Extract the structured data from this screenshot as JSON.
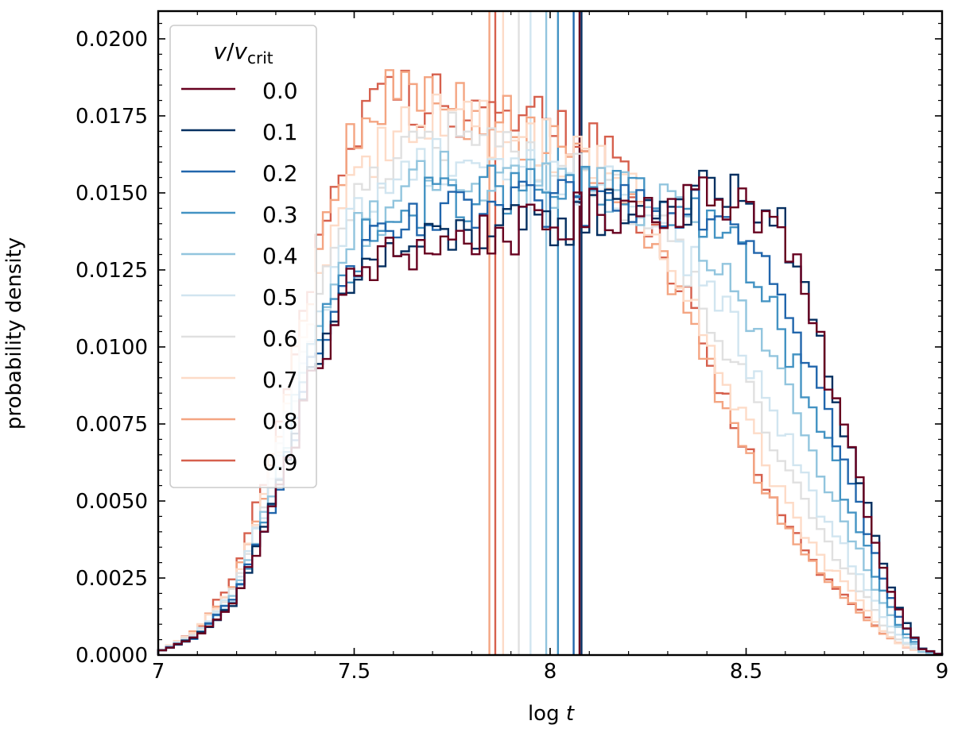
{
  "chart_data": {
    "type": "histogram",
    "xlabel_main": "log",
    "xlabel_var": "t",
    "ylabel": "probability density",
    "xlim": [
      7,
      9
    ],
    "ylim": [
      0,
      0.0209
    ],
    "xticks": [
      {
        "value": 7,
        "label": "7"
      },
      {
        "value": 7.5,
        "label": "7.5"
      },
      {
        "value": 8,
        "label": "8"
      },
      {
        "value": 8.5,
        "label": "8.5"
      },
      {
        "value": 9,
        "label": "9"
      }
    ],
    "yticks": [
      {
        "value": 0.0,
        "label": "0.0000"
      },
      {
        "value": 0.0025,
        "label": "0.0025"
      },
      {
        "value": 0.005,
        "label": "0.0050"
      },
      {
        "value": 0.0075,
        "label": "0.0075"
      },
      {
        "value": 0.01,
        "label": "0.0100"
      },
      {
        "value": 0.0125,
        "label": "0.0125"
      },
      {
        "value": 0.015,
        "label": "0.0150"
      },
      {
        "value": 0.0175,
        "label": "0.0175"
      },
      {
        "value": 0.02,
        "label": "0.0200"
      }
    ],
    "legend": {
      "position": "upper-left",
      "title_var": "v",
      "title_sub_var": "v",
      "title_sub": "crit"
    },
    "series": [
      {
        "name": "0.0",
        "color": "#67001f",
        "median": 8.075,
        "profile": [
          [
            7.0,
            0.0001
          ],
          [
            7.1,
            0.0006
          ],
          [
            7.2,
            0.0018
          ],
          [
            7.3,
            0.005
          ],
          [
            7.4,
            0.0092
          ],
          [
            7.5,
            0.0123
          ],
          [
            7.6,
            0.013
          ],
          [
            7.7,
            0.0133
          ],
          [
            7.8,
            0.0136
          ],
          [
            7.9,
            0.0137
          ],
          [
            8.0,
            0.0139
          ],
          [
            8.1,
            0.0143
          ],
          [
            8.2,
            0.0146
          ],
          [
            8.3,
            0.0147
          ],
          [
            8.4,
            0.0148
          ],
          [
            8.5,
            0.0149
          ],
          [
            8.6,
            0.0135
          ],
          [
            8.7,
            0.0095
          ],
          [
            8.8,
            0.0052
          ],
          [
            8.85,
            0.0028
          ],
          [
            8.9,
            0.0011
          ],
          [
            8.95,
            0.0002
          ],
          [
            9.0,
            0.0
          ]
        ]
      },
      {
        "name": "0.1",
        "color": "#053061",
        "median": 8.08,
        "profile": [
          [
            7.0,
            0.0001
          ],
          [
            7.1,
            0.0006
          ],
          [
            7.2,
            0.0018
          ],
          [
            7.3,
            0.005
          ],
          [
            7.4,
            0.0093
          ],
          [
            7.5,
            0.0124
          ],
          [
            7.6,
            0.013
          ],
          [
            7.7,
            0.0134
          ],
          [
            7.8,
            0.0137
          ],
          [
            7.9,
            0.0138
          ],
          [
            8.0,
            0.0139
          ],
          [
            8.1,
            0.0143
          ],
          [
            8.2,
            0.0146
          ],
          [
            8.3,
            0.0147
          ],
          [
            8.4,
            0.0149
          ],
          [
            8.5,
            0.015
          ],
          [
            8.6,
            0.0136
          ],
          [
            8.7,
            0.0096
          ],
          [
            8.8,
            0.0053
          ],
          [
            8.85,
            0.0029
          ],
          [
            8.9,
            0.0012
          ],
          [
            8.95,
            0.0002
          ],
          [
            9.0,
            0.0
          ]
        ]
      },
      {
        "name": "0.2",
        "color": "#2166ac",
        "median": 8.06,
        "profile": [
          [
            7.0,
            0.0001
          ],
          [
            7.1,
            0.0006
          ],
          [
            7.2,
            0.0019
          ],
          [
            7.3,
            0.0052
          ],
          [
            7.4,
            0.0096
          ],
          [
            7.5,
            0.0127
          ],
          [
            7.6,
            0.0136
          ],
          [
            7.7,
            0.0141
          ],
          [
            7.8,
            0.0143
          ],
          [
            7.9,
            0.0145
          ],
          [
            8.0,
            0.0145
          ],
          [
            8.1,
            0.0147
          ],
          [
            8.2,
            0.0148
          ],
          [
            8.3,
            0.0148
          ],
          [
            8.4,
            0.0146
          ],
          [
            8.5,
            0.014
          ],
          [
            8.6,
            0.0118
          ],
          [
            8.7,
            0.0082
          ],
          [
            8.8,
            0.0044
          ],
          [
            8.85,
            0.0024
          ],
          [
            8.9,
            0.001
          ],
          [
            8.95,
            0.0002
          ],
          [
            9.0,
            0.0
          ]
        ]
      },
      {
        "name": "0.3",
        "color": "#4393c3",
        "median": 8.02,
        "profile": [
          [
            7.0,
            0.0001
          ],
          [
            7.1,
            0.0006
          ],
          [
            7.2,
            0.0019
          ],
          [
            7.3,
            0.0054
          ],
          [
            7.4,
            0.01
          ],
          [
            7.5,
            0.0131
          ],
          [
            7.6,
            0.0141
          ],
          [
            7.7,
            0.0147
          ],
          [
            7.8,
            0.015
          ],
          [
            7.9,
            0.0151
          ],
          [
            8.0,
            0.015
          ],
          [
            8.1,
            0.015
          ],
          [
            8.2,
            0.0149
          ],
          [
            8.3,
            0.0147
          ],
          [
            8.4,
            0.0142
          ],
          [
            8.5,
            0.0128
          ],
          [
            8.6,
            0.0102
          ],
          [
            8.7,
            0.007
          ],
          [
            8.8,
            0.0037
          ],
          [
            8.85,
            0.002
          ],
          [
            8.9,
            0.0008
          ],
          [
            8.95,
            0.0002
          ],
          [
            9.0,
            0.0
          ]
        ]
      },
      {
        "name": "0.4",
        "color": "#92c5de",
        "median": 7.99,
        "profile": [
          [
            7.0,
            0.0001
          ],
          [
            7.1,
            0.0006
          ],
          [
            7.2,
            0.002
          ],
          [
            7.3,
            0.0056
          ],
          [
            7.4,
            0.0104
          ],
          [
            7.5,
            0.0136
          ],
          [
            7.6,
            0.0148
          ],
          [
            7.7,
            0.0154
          ],
          [
            7.8,
            0.0156
          ],
          [
            7.9,
            0.0155
          ],
          [
            8.0,
            0.0153
          ],
          [
            8.1,
            0.0151
          ],
          [
            8.2,
            0.0149
          ],
          [
            8.3,
            0.0144
          ],
          [
            8.4,
            0.0132
          ],
          [
            8.5,
            0.0113
          ],
          [
            8.6,
            0.0086
          ],
          [
            8.7,
            0.0057
          ],
          [
            8.8,
            0.003
          ],
          [
            8.85,
            0.0016
          ],
          [
            8.9,
            0.0007
          ],
          [
            8.95,
            0.0001
          ],
          [
            9.0,
            0.0
          ]
        ]
      },
      {
        "name": "0.5",
        "color": "#d1e5f0",
        "median": 7.95,
        "profile": [
          [
            7.0,
            0.0001
          ],
          [
            7.1,
            0.0007
          ],
          [
            7.2,
            0.0021
          ],
          [
            7.3,
            0.0058
          ],
          [
            7.4,
            0.0108
          ],
          [
            7.5,
            0.0143
          ],
          [
            7.6,
            0.0155
          ],
          [
            7.7,
            0.0161
          ],
          [
            7.8,
            0.0162
          ],
          [
            7.9,
            0.0159
          ],
          [
            8.0,
            0.0156
          ],
          [
            8.1,
            0.0153
          ],
          [
            8.2,
            0.0149
          ],
          [
            8.3,
            0.014
          ],
          [
            8.4,
            0.0122
          ],
          [
            8.5,
            0.0098
          ],
          [
            8.6,
            0.0071
          ],
          [
            8.7,
            0.0045
          ],
          [
            8.8,
            0.0024
          ],
          [
            8.85,
            0.0013
          ],
          [
            8.9,
            0.0005
          ],
          [
            8.95,
            0.0001
          ],
          [
            9.0,
            0.0
          ]
        ]
      },
      {
        "name": "0.6",
        "color": "#e0e0e0",
        "median": 7.92,
        "profile": [
          [
            7.0,
            0.0001
          ],
          [
            7.1,
            0.0007
          ],
          [
            7.2,
            0.0022
          ],
          [
            7.3,
            0.006
          ],
          [
            7.4,
            0.0113
          ],
          [
            7.5,
            0.015
          ],
          [
            7.6,
            0.0162
          ],
          [
            7.7,
            0.0168
          ],
          [
            7.8,
            0.0167
          ],
          [
            7.9,
            0.0163
          ],
          [
            8.0,
            0.0158
          ],
          [
            8.1,
            0.0154
          ],
          [
            8.2,
            0.0148
          ],
          [
            8.3,
            0.0134
          ],
          [
            8.4,
            0.0113
          ],
          [
            8.5,
            0.0087
          ],
          [
            8.6,
            0.006
          ],
          [
            8.7,
            0.0037
          ],
          [
            8.8,
            0.002
          ],
          [
            8.85,
            0.001
          ],
          [
            8.9,
            0.0004
          ],
          [
            8.95,
            0.0001
          ],
          [
            9.0,
            0.0
          ]
        ]
      },
      {
        "name": "0.7",
        "color": "#fddbc7",
        "median": 7.88,
        "profile": [
          [
            7.0,
            0.0001
          ],
          [
            7.1,
            0.0008
          ],
          [
            7.2,
            0.0023
          ],
          [
            7.3,
            0.0063
          ],
          [
            7.4,
            0.0119
          ],
          [
            7.5,
            0.0158
          ],
          [
            7.6,
            0.0171
          ],
          [
            7.7,
            0.0175
          ],
          [
            7.8,
            0.0172
          ],
          [
            7.9,
            0.0168
          ],
          [
            8.0,
            0.0166
          ],
          [
            8.1,
            0.0163
          ],
          [
            8.2,
            0.0152
          ],
          [
            8.3,
            0.0127
          ],
          [
            8.4,
            0.0103
          ],
          [
            8.5,
            0.0076
          ],
          [
            8.6,
            0.005
          ],
          [
            8.7,
            0.003
          ],
          [
            8.8,
            0.0016
          ],
          [
            8.85,
            0.0008
          ],
          [
            8.9,
            0.0003
          ],
          [
            8.95,
            0.0001
          ],
          [
            9.0,
            0.0
          ]
        ]
      },
      {
        "name": "0.8",
        "color": "#f4a582",
        "median": 7.845,
        "profile": [
          [
            7.0,
            0.0001
          ],
          [
            7.1,
            0.0008
          ],
          [
            7.2,
            0.0025
          ],
          [
            7.3,
            0.0066
          ],
          [
            7.4,
            0.0126
          ],
          [
            7.5,
            0.0167
          ],
          [
            7.6,
            0.0182
          ],
          [
            7.7,
            0.0183
          ],
          [
            7.8,
            0.0176
          ],
          [
            7.9,
            0.0171
          ],
          [
            8.0,
            0.0168
          ],
          [
            8.1,
            0.0164
          ],
          [
            8.2,
            0.015
          ],
          [
            8.3,
            0.0122
          ],
          [
            8.4,
            0.0094
          ],
          [
            8.5,
            0.0066
          ],
          [
            8.6,
            0.0042
          ],
          [
            8.7,
            0.0025
          ],
          [
            8.8,
            0.0013
          ],
          [
            8.85,
            0.0007
          ],
          [
            8.9,
            0.0003
          ],
          [
            8.95,
            0.0001
          ],
          [
            9.0,
            0.0
          ]
        ]
      },
      {
        "name": "0.9",
        "color": "#d6604d",
        "median": 7.86,
        "profile": [
          [
            7.0,
            0.0001
          ],
          [
            7.1,
            0.0008
          ],
          [
            7.2,
            0.0026
          ],
          [
            7.3,
            0.0069
          ],
          [
            7.4,
            0.013
          ],
          [
            7.5,
            0.0171
          ],
          [
            7.6,
            0.0182
          ],
          [
            7.7,
            0.0181
          ],
          [
            7.8,
            0.0178
          ],
          [
            7.9,
            0.0175
          ],
          [
            8.0,
            0.0172
          ],
          [
            8.1,
            0.0166
          ],
          [
            8.2,
            0.0153
          ],
          [
            8.3,
            0.0128
          ],
          [
            8.4,
            0.0098
          ],
          [
            8.5,
            0.0068
          ],
          [
            8.6,
            0.0043
          ],
          [
            8.7,
            0.0025
          ],
          [
            8.8,
            0.0013
          ],
          [
            8.85,
            0.0007
          ],
          [
            8.9,
            0.0003
          ],
          [
            8.95,
            0.0001
          ],
          [
            9.0,
            0.0
          ]
        ]
      }
    ]
  }
}
